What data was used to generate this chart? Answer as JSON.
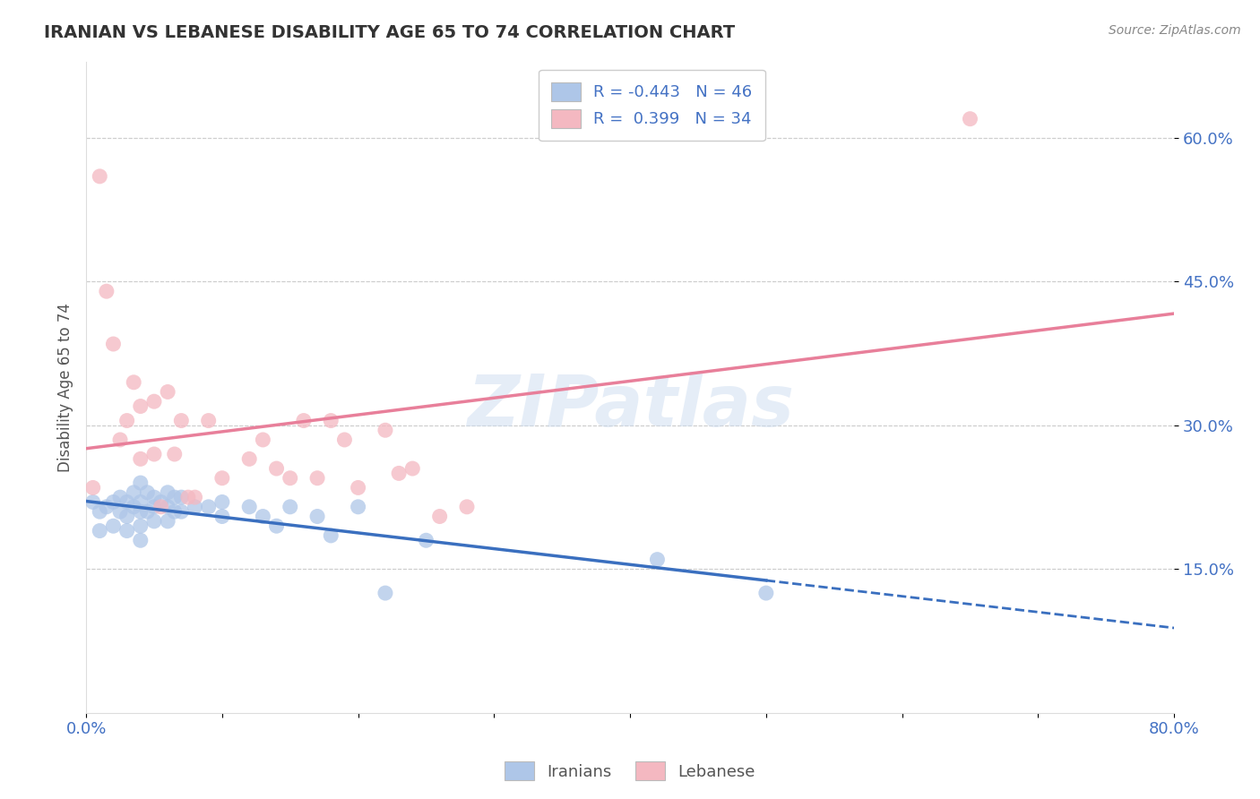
{
  "title": "IRANIAN VS LEBANESE DISABILITY AGE 65 TO 74 CORRELATION CHART",
  "source": "Source: ZipAtlas.com",
  "ylabel": "Disability Age 65 to 74",
  "xlim": [
    0.0,
    0.8
  ],
  "ylim": [
    0.0,
    0.68
  ],
  "xticks": [
    0.0,
    0.1,
    0.2,
    0.3,
    0.4,
    0.5,
    0.6,
    0.7,
    0.8
  ],
  "xticklabels": [
    "0.0%",
    "",
    "",
    "",
    "",
    "",
    "",
    "",
    "80.0%"
  ],
  "ytick_positions": [
    0.15,
    0.3,
    0.45,
    0.6
  ],
  "ytick_labels": [
    "15.0%",
    "30.0%",
    "45.0%",
    "60.0%"
  ],
  "iranian_R": -0.443,
  "iranian_N": 46,
  "lebanese_R": 0.399,
  "lebanese_N": 34,
  "iranian_color": "#aec6e8",
  "lebanese_color": "#f4b8c1",
  "iranian_line_color": "#3a6fbf",
  "lebanese_line_color": "#e87f9a",
  "watermark": "ZIPatlas",
  "background_color": "#ffffff",
  "grid_color": "#cccccc",
  "title_color": "#333333",
  "axis_label_color": "#4472c4",
  "iranians_scatter_x": [
    0.005,
    0.01,
    0.01,
    0.015,
    0.02,
    0.02,
    0.025,
    0.025,
    0.03,
    0.03,
    0.03,
    0.035,
    0.035,
    0.04,
    0.04,
    0.04,
    0.04,
    0.04,
    0.045,
    0.045,
    0.05,
    0.05,
    0.05,
    0.055,
    0.06,
    0.06,
    0.06,
    0.065,
    0.065,
    0.07,
    0.07,
    0.08,
    0.09,
    0.1,
    0.1,
    0.12,
    0.13,
    0.14,
    0.15,
    0.17,
    0.18,
    0.2,
    0.22,
    0.25,
    0.42,
    0.5
  ],
  "iranians_scatter_y": [
    0.22,
    0.21,
    0.19,
    0.215,
    0.22,
    0.195,
    0.225,
    0.21,
    0.22,
    0.205,
    0.19,
    0.23,
    0.215,
    0.24,
    0.22,
    0.21,
    0.195,
    0.18,
    0.23,
    0.21,
    0.225,
    0.215,
    0.2,
    0.22,
    0.23,
    0.215,
    0.2,
    0.225,
    0.21,
    0.225,
    0.21,
    0.215,
    0.215,
    0.22,
    0.205,
    0.215,
    0.205,
    0.195,
    0.215,
    0.205,
    0.185,
    0.215,
    0.125,
    0.18,
    0.16,
    0.125
  ],
  "lebanese_scatter_x": [
    0.005,
    0.01,
    0.015,
    0.02,
    0.025,
    0.03,
    0.035,
    0.04,
    0.04,
    0.05,
    0.05,
    0.055,
    0.06,
    0.065,
    0.07,
    0.075,
    0.08,
    0.09,
    0.1,
    0.12,
    0.13,
    0.14,
    0.15,
    0.16,
    0.17,
    0.18,
    0.19,
    0.2,
    0.22,
    0.23,
    0.24,
    0.26,
    0.28,
    0.65
  ],
  "lebanese_scatter_y": [
    0.235,
    0.56,
    0.44,
    0.385,
    0.285,
    0.305,
    0.345,
    0.32,
    0.265,
    0.325,
    0.27,
    0.215,
    0.335,
    0.27,
    0.305,
    0.225,
    0.225,
    0.305,
    0.245,
    0.265,
    0.285,
    0.255,
    0.245,
    0.305,
    0.245,
    0.305,
    0.285,
    0.235,
    0.295,
    0.25,
    0.255,
    0.205,
    0.215,
    0.62
  ]
}
